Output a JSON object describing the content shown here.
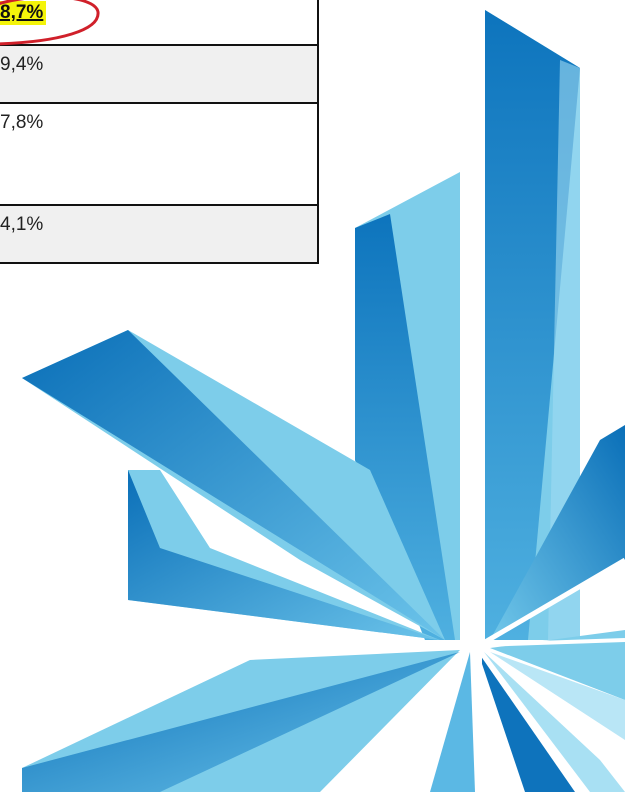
{
  "table": {
    "rows": [
      {
        "value": "8,7%",
        "highlighted": true
      },
      {
        "value": "9,4%",
        "highlighted": false
      },
      {
        "value": "7,8%",
        "highlighted": false
      },
      {
        "value": "4,1%",
        "highlighted": false
      }
    ]
  },
  "colors": {
    "highlight": "#f4f40a",
    "annotation_circle": "#d0202a",
    "logo_dark": "#0a6fb8",
    "logo_light": "#7dcdea"
  },
  "logo": {
    "icon": "snowflake-logo-icon"
  }
}
